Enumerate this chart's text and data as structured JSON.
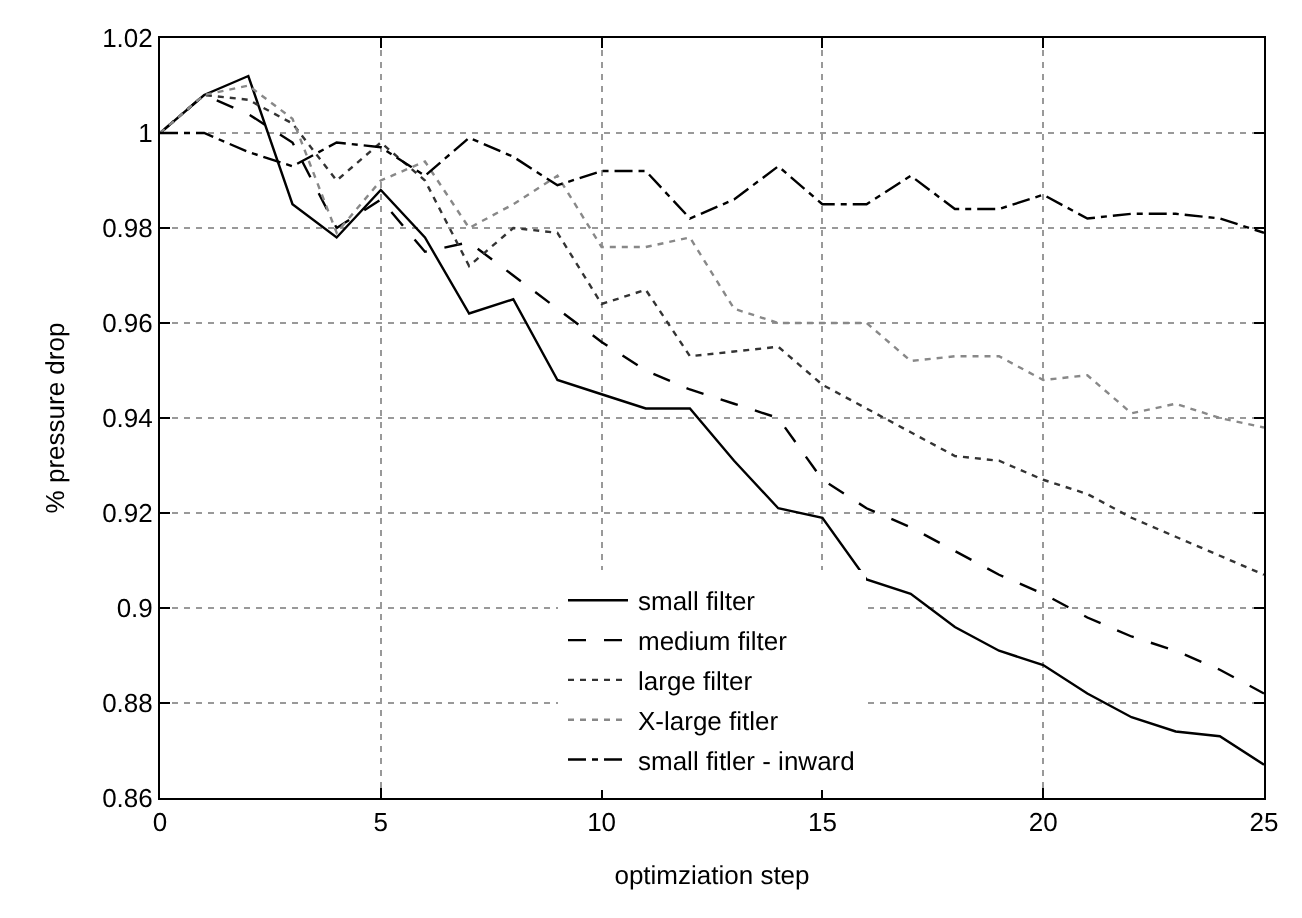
{
  "chart_data": {
    "type": "line",
    "xlabel": "optimziation step",
    "ylabel": "% pressure drop",
    "x": [
      0,
      1,
      2,
      3,
      4,
      5,
      6,
      7,
      8,
      9,
      10,
      11,
      12,
      13,
      14,
      15,
      16,
      17,
      18,
      19,
      20,
      21,
      22,
      23,
      24,
      25
    ],
    "series": [
      {
        "name": "small filter",
        "color": "#000000",
        "line_style": "solid",
        "values": [
          1,
          1.008,
          1.012,
          0.985,
          0.978,
          0.988,
          0.978,
          0.962,
          0.965,
          0.948,
          0.945,
          0.942,
          0.942,
          0.931,
          0.921,
          0.919,
          0.906,
          0.903,
          0.896,
          0.891,
          0.888,
          0.882,
          0.877,
          0.874,
          0.873,
          0.867
        ]
      },
      {
        "name": "medium filter",
        "color": "#000000",
        "line_style": "dashed",
        "values": [
          1,
          1.008,
          1.004,
          0.998,
          0.98,
          0.986,
          0.975,
          0.977,
          0.97,
          0.963,
          0.956,
          0.95,
          0.946,
          0.943,
          0.94,
          0.927,
          0.921,
          0.917,
          0.912,
          0.907,
          0.903,
          0.898,
          0.894,
          0.891,
          0.887,
          0.882
        ]
      },
      {
        "name": "large filter",
        "color": "#333333",
        "line_style": "dotted",
        "values": [
          1,
          1.008,
          1.007,
          1.002,
          0.99,
          0.998,
          0.99,
          0.972,
          0.98,
          0.979,
          0.964,
          0.967,
          0.953,
          0.954,
          0.955,
          0.947,
          0.942,
          0.937,
          0.932,
          0.931,
          0.927,
          0.924,
          0.919,
          0.915,
          0.911,
          0.907
        ]
      },
      {
        "name": "X-large fitler",
        "color": "#888888",
        "line_style": "dotted",
        "values": [
          1,
          1.008,
          1.01,
          1.003,
          0.979,
          0.99,
          0.994,
          0.98,
          0.985,
          0.991,
          0.976,
          0.976,
          0.978,
          0.963,
          0.96,
          0.96,
          0.96,
          0.952,
          0.953,
          0.953,
          0.948,
          0.949,
          0.941,
          0.943,
          0.94,
          0.938
        ]
      },
      {
        "name": "small fitler - inward",
        "color": "#000000",
        "line_style": "dashdot",
        "values": [
          1,
          1.0,
          0.996,
          0.993,
          0.998,
          0.997,
          0.991,
          0.999,
          0.995,
          0.989,
          0.992,
          0.992,
          0.982,
          0.986,
          0.993,
          0.985,
          0.985,
          0.991,
          0.984,
          0.984,
          0.987,
          0.982,
          0.983,
          0.983,
          0.982,
          0.979
        ]
      }
    ],
    "xlim": [
      0,
      25
    ],
    "xticks": [
      0,
      5,
      10,
      15,
      20,
      25
    ],
    "ylim": [
      0.86,
      1.02
    ],
    "yticks": [
      0.86,
      0.88,
      0.9,
      0.92,
      0.94,
      0.96,
      0.98,
      1,
      1.02
    ],
    "grid": true,
    "legend": "bottom"
  }
}
